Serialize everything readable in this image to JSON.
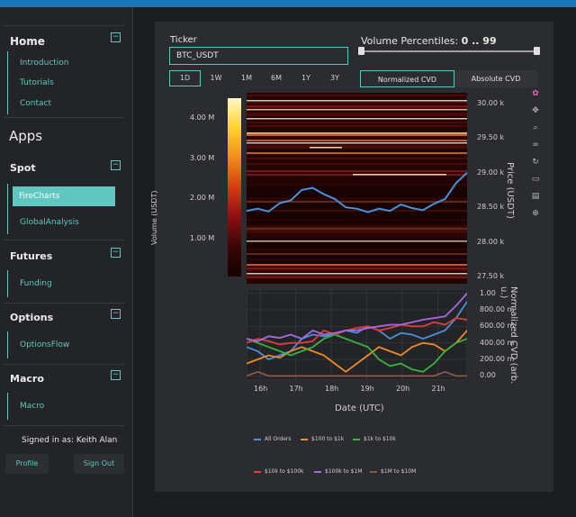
{
  "sidebar": {
    "home": {
      "title": "Home",
      "items": [
        "Introduction",
        "Tutorials",
        "Contact"
      ]
    },
    "apps_title": "Apps",
    "spot": {
      "title": "Spot",
      "items": [
        "FireCharts",
        "GlobalAnalysis"
      ],
      "active": "FireCharts"
    },
    "futures": {
      "title": "Futures",
      "items": [
        "Funding"
      ]
    },
    "options": {
      "title": "Options",
      "items": [
        "OptionsFlow"
      ]
    },
    "macro": {
      "title": "Macro",
      "items": [
        "Macro"
      ]
    },
    "signed_in": "Signed in as: Keith Alan",
    "profile_label": "Profile",
    "signout_label": "Sign Out"
  },
  "controls": {
    "ticker_label": "Ticker",
    "ticker_value": "BTC_USDT",
    "ranges": [
      "1D",
      "1W",
      "1M",
      "6M",
      "1Y",
      "3Y"
    ],
    "active_range": "1D",
    "volume_label": "Volume Percentiles:",
    "volume_range": "0 .. 99",
    "volume_low": 0,
    "volume_high": 99,
    "cvd_modes": [
      "Normalized CVD",
      "Absolute CVD"
    ],
    "active_cvd": "Normalized CVD"
  },
  "colors": {
    "accent": "#5fc7bf",
    "price_line": "#4a90d9",
    "all_orders": "#4a90d9",
    "b100_1k": "#f08a24",
    "b1k_10k": "#38b23c",
    "b10k_100k": "#e23b3b",
    "b100k_1m": "#a36be0",
    "b1m_10m": "#8c5a4a"
  },
  "icons": [
    "colorwheel-icon",
    "pan-icon",
    "zoom-icon",
    "lasso-icon",
    "reset-icon",
    "save-icon",
    "hover-icon",
    "spike-icon"
  ],
  "chart_data": [
    {
      "type": "heatmap",
      "ylabel_left": "Volume (USDT)",
      "colorbar_ticks": [
        "1.00 M",
        "2.00 M",
        "3.00 M",
        "4.00 M"
      ],
      "colorbar_values": [
        1000000,
        2000000,
        3000000,
        4000000
      ],
      "ylabel_right": "Price (USDT)",
      "price_ticks": [
        "27.50 k",
        "28.00 k",
        "28.50 k",
        "29.00 k",
        "29.50 k",
        "30.00 k"
      ],
      "price_tick_values": [
        27500,
        28000,
        28500,
        29000,
        29500,
        30000
      ],
      "ylim": [
        27400,
        30150
      ],
      "price_series": {
        "name": "Price",
        "x": [
          0,
          0.05,
          0.1,
          0.15,
          0.2,
          0.25,
          0.3,
          0.35,
          0.4,
          0.45,
          0.5,
          0.55,
          0.6,
          0.65,
          0.7,
          0.75,
          0.8,
          0.85,
          0.9,
          0.95,
          1.0
        ],
        "values": [
          28450,
          28480,
          28440,
          28560,
          28600,
          28750,
          28780,
          28690,
          28620,
          28500,
          28480,
          28430,
          28480,
          28450,
          28540,
          28490,
          28460,
          28550,
          28620,
          28850,
          29000
        ]
      }
    },
    {
      "type": "line",
      "xlabel": "Date (UTC)",
      "ylabel": "Normalized CVD (arb. u.)",
      "x_ticks": [
        "16h",
        "17h",
        "18h",
        "19h",
        "20h",
        "21h"
      ],
      "y_ticks": [
        "0.00",
        "200.00 m",
        "400.00 m",
        "600.00 m",
        "800.00 m",
        "1.00"
      ],
      "ylim": [
        -0.05,
        1.05
      ],
      "x": [
        0,
        0.05,
        0.1,
        0.15,
        0.2,
        0.25,
        0.3,
        0.35,
        0.4,
        0.45,
        0.5,
        0.55,
        0.6,
        0.65,
        0.7,
        0.75,
        0.8,
        0.85,
        0.9,
        0.95,
        1.0
      ],
      "series": [
        {
          "name": "All Orders",
          "values": [
            0.35,
            0.3,
            0.2,
            0.25,
            0.3,
            0.45,
            0.5,
            0.48,
            0.5,
            0.55,
            0.52,
            0.6,
            0.55,
            0.45,
            0.52,
            0.5,
            0.45,
            0.5,
            0.55,
            0.7,
            0.9
          ]
        },
        {
          "name": "$100 to $1k",
          "values": [
            0.15,
            0.2,
            0.25,
            0.22,
            0.3,
            0.35,
            0.3,
            0.25,
            0.15,
            0.05,
            0.15,
            0.25,
            0.35,
            0.3,
            0.25,
            0.35,
            0.4,
            0.38,
            0.3,
            0.4,
            0.55
          ]
        },
        {
          "name": "$1k to $10k",
          "values": [
            0.45,
            0.4,
            0.35,
            0.3,
            0.25,
            0.3,
            0.35,
            0.45,
            0.5,
            0.45,
            0.4,
            0.35,
            0.2,
            0.12,
            0.15,
            0.08,
            0.05,
            0.15,
            0.3,
            0.4,
            0.45
          ]
        },
        {
          "name": "$10k to $100k",
          "values": [
            0.4,
            0.45,
            0.42,
            0.38,
            0.4,
            0.4,
            0.42,
            0.55,
            0.5,
            0.55,
            0.58,
            0.6,
            0.55,
            0.58,
            0.62,
            0.6,
            0.6,
            0.65,
            0.62,
            0.7,
            0.68
          ]
        },
        {
          "name": "$100k to $1M",
          "values": [
            0.45,
            0.42,
            0.48,
            0.46,
            0.5,
            0.45,
            0.55,
            0.5,
            0.52,
            0.55,
            0.55,
            0.58,
            0.6,
            0.62,
            0.62,
            0.65,
            0.68,
            0.7,
            0.72,
            0.85,
            1.0
          ]
        },
        {
          "name": "$1M to $10M",
          "values": [
            0.0,
            0.05,
            0.0,
            0.0,
            0.0,
            0.0,
            0.0,
            0.0,
            0.0,
            0.0,
            0.0,
            0.0,
            0.0,
            0.0,
            0.0,
            0.0,
            0.0,
            0.0,
            0.05,
            0.0,
            0.0
          ]
        }
      ]
    }
  ]
}
